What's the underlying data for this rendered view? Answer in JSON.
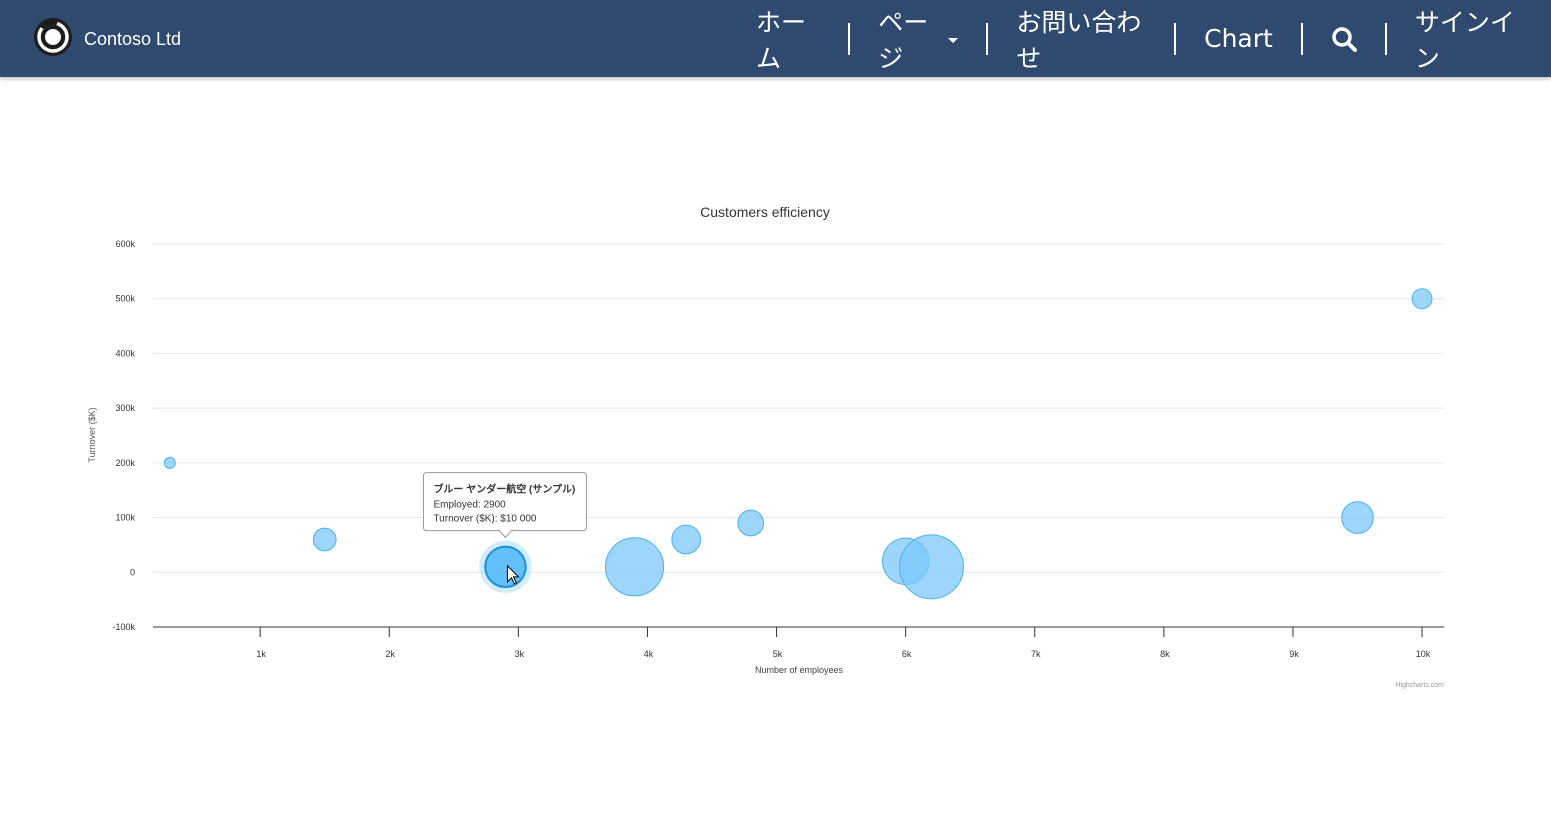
{
  "header": {
    "brand": "Contoso Ltd",
    "nav": [
      "ホーム",
      "ページ",
      "お問い合わせ",
      "Chart",
      "サインイン"
    ],
    "search_icon": "search-icon",
    "logo_icon": "contoso-logo-icon"
  },
  "chart_data": {
    "type": "bubble",
    "title": "Customers efficiency",
    "xlabel": "Number of employees",
    "ylabel": "Turnover ($K)",
    "xlim": [
      170,
      10170
    ],
    "ylim": [
      -100000,
      600000
    ],
    "x_ticks": [
      1000,
      2000,
      3000,
      4000,
      5000,
      6000,
      7000,
      8000,
      9000,
      10000
    ],
    "x_tick_labels": [
      "1k",
      "2k",
      "3k",
      "4k",
      "5k",
      "6k",
      "7k",
      "8k",
      "9k",
      "10k"
    ],
    "y_ticks": [
      -100000,
      0,
      100000,
      200000,
      300000,
      400000,
      500000,
      600000
    ],
    "y_tick_labels": [
      "-100k",
      "0",
      "100k",
      "200k",
      "300k",
      "400k",
      "500k",
      "600k"
    ],
    "grid": true,
    "bubble_color": "#7cc8f8",
    "bubble_border": "#4ab1f0",
    "points": [
      {
        "x": 300,
        "y": 200000,
        "z": 1
      },
      {
        "x": 1500,
        "y": 60000,
        "z": 3
      },
      {
        "x": 2900,
        "y": 10000,
        "z": 6
      },
      {
        "x": 3900,
        "y": 10000,
        "z": 9
      },
      {
        "x": 4300,
        "y": 60000,
        "z": 4
      },
      {
        "x": 4800,
        "y": 90000,
        "z": 3.5
      },
      {
        "x": 6000,
        "y": 20000,
        "z": 7
      },
      {
        "x": 6200,
        "y": 10000,
        "z": 10
      },
      {
        "x": 9500,
        "y": 100000,
        "z": 4.5
      },
      {
        "x": 10000,
        "y": 500000,
        "z": 2.5
      }
    ],
    "tooltip": {
      "point_index": 2,
      "title": "ブルー ヤンダー航空 (サンプル)",
      "line1": "Employed: 2900",
      "line2": "Turnover ($K): $10 000"
    },
    "credits": "Highcharts.com"
  }
}
